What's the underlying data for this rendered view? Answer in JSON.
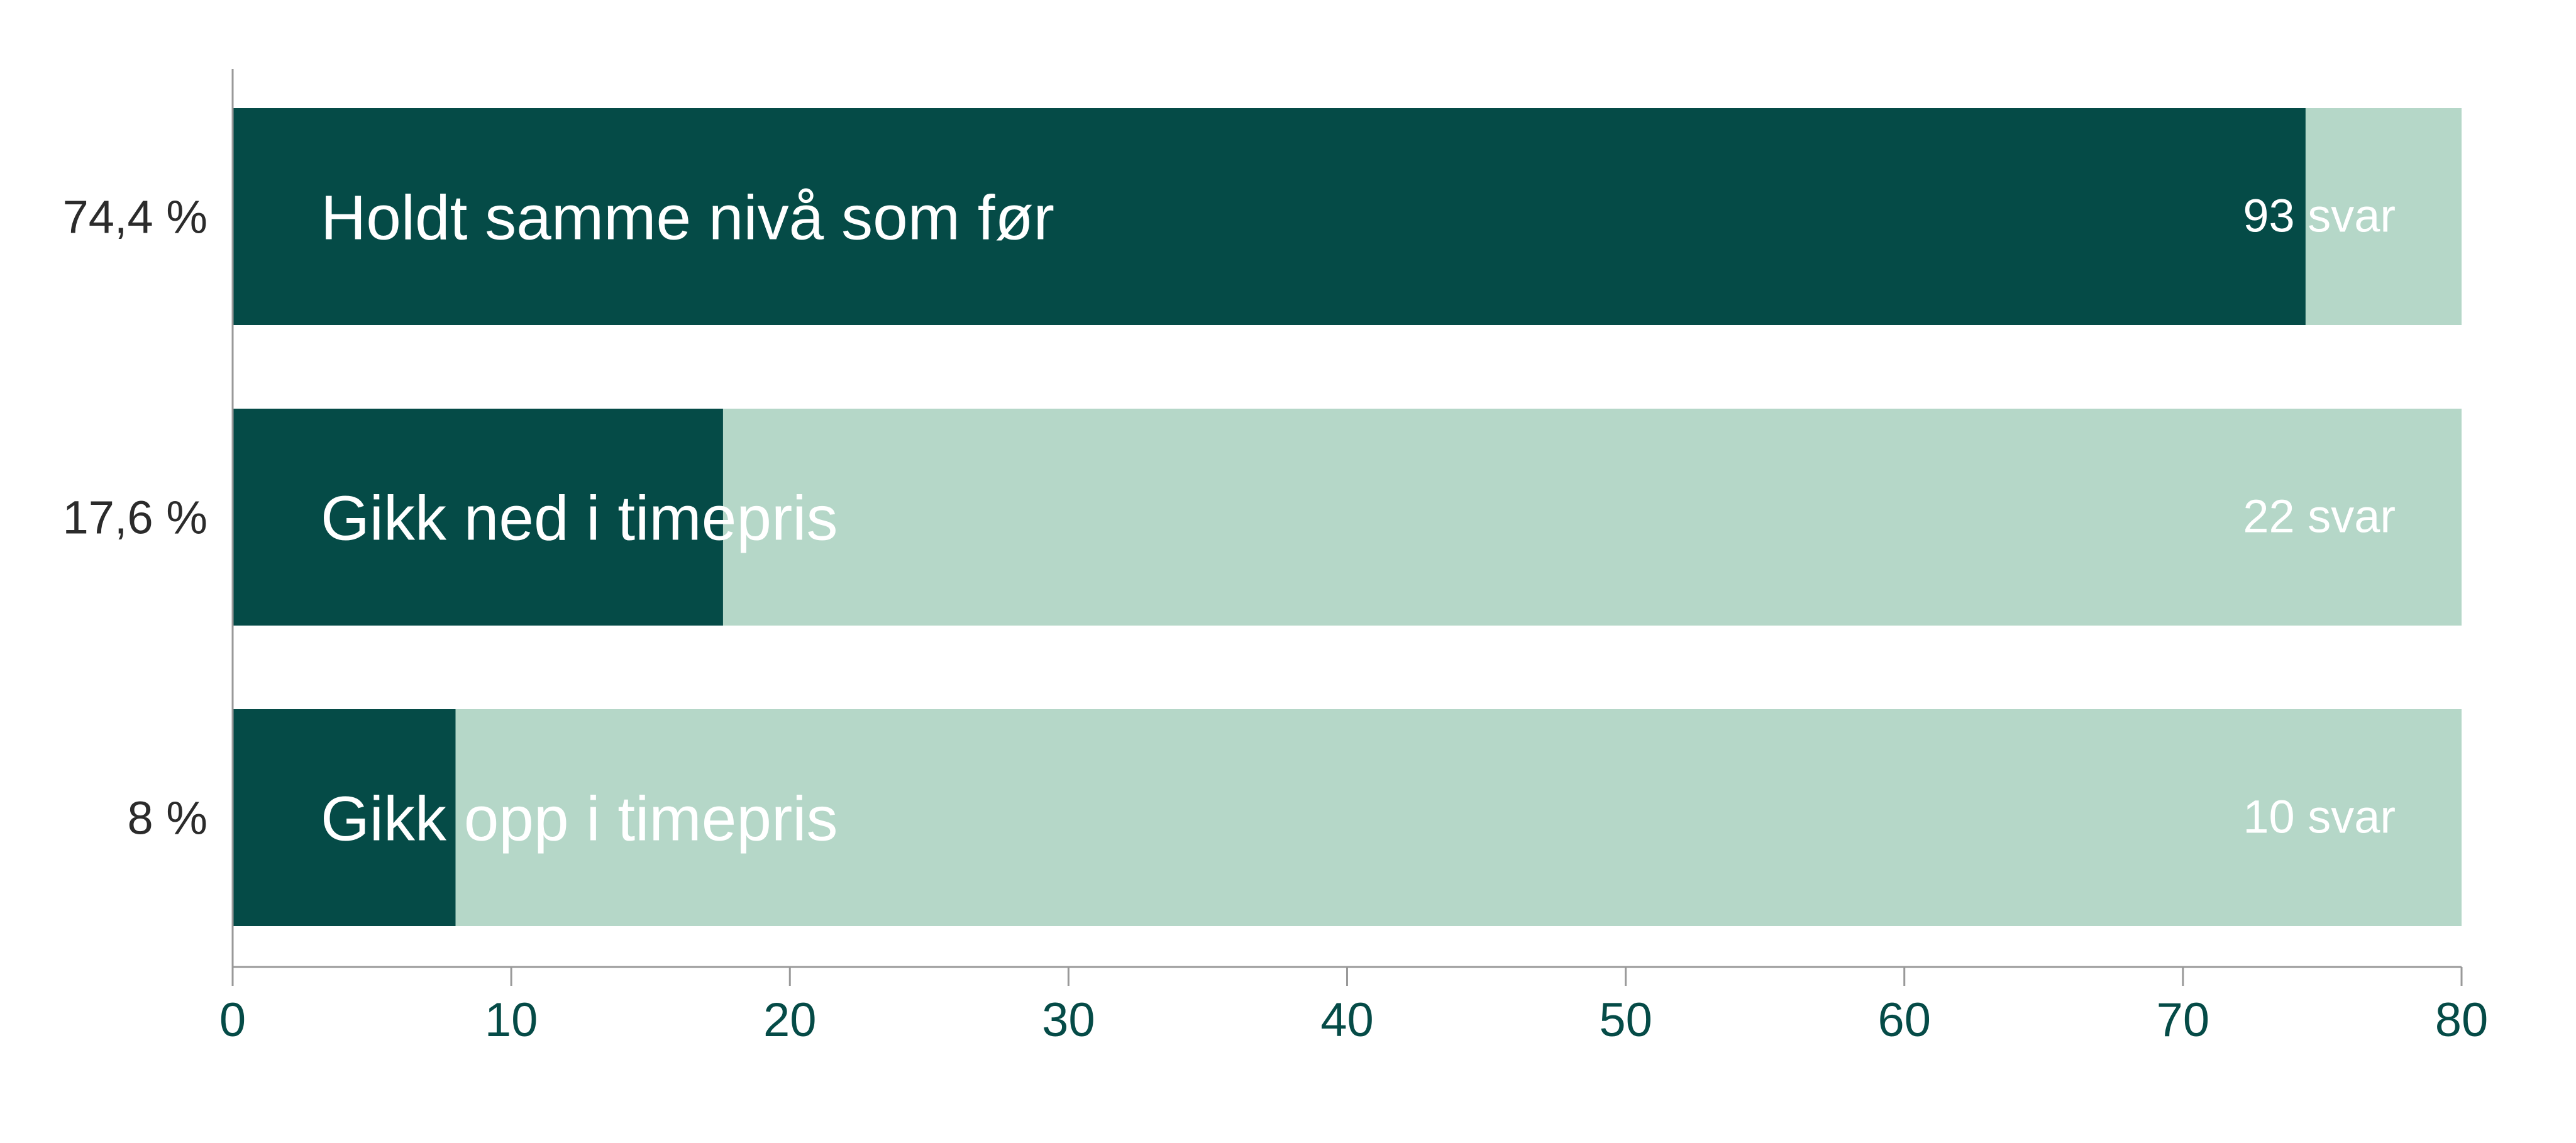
{
  "chart_data": {
    "type": "bar",
    "orientation": "horizontal",
    "categories": [
      "Holdt samme nivå som før",
      "Gikk ned i timepris",
      "Gikk opp i timepris"
    ],
    "values": [
      74.4,
      17.6,
      8
    ],
    "value_labels": [
      "74,4 %",
      "17,6 %",
      "8 %"
    ],
    "count_labels": [
      "93 svar",
      "22 svar",
      "10 svar"
    ],
    "xlim": [
      0,
      80
    ],
    "x_ticks": [
      0,
      10,
      20,
      30,
      40,
      50,
      60,
      70,
      80
    ],
    "x_tick_labels": [
      "0",
      "10",
      "20",
      "30",
      "40",
      "50",
      "60",
      "70",
      "80"
    ],
    "title": "",
    "xlabel": "",
    "ylabel": "",
    "grid": false,
    "legend": "none",
    "colors": {
      "bar": "#054b47",
      "track": "#b5d7c8",
      "axis": "#999999",
      "tick_text": "#054b47",
      "value_text": "#2b2b2b",
      "inner_text": "#ffffff"
    }
  }
}
